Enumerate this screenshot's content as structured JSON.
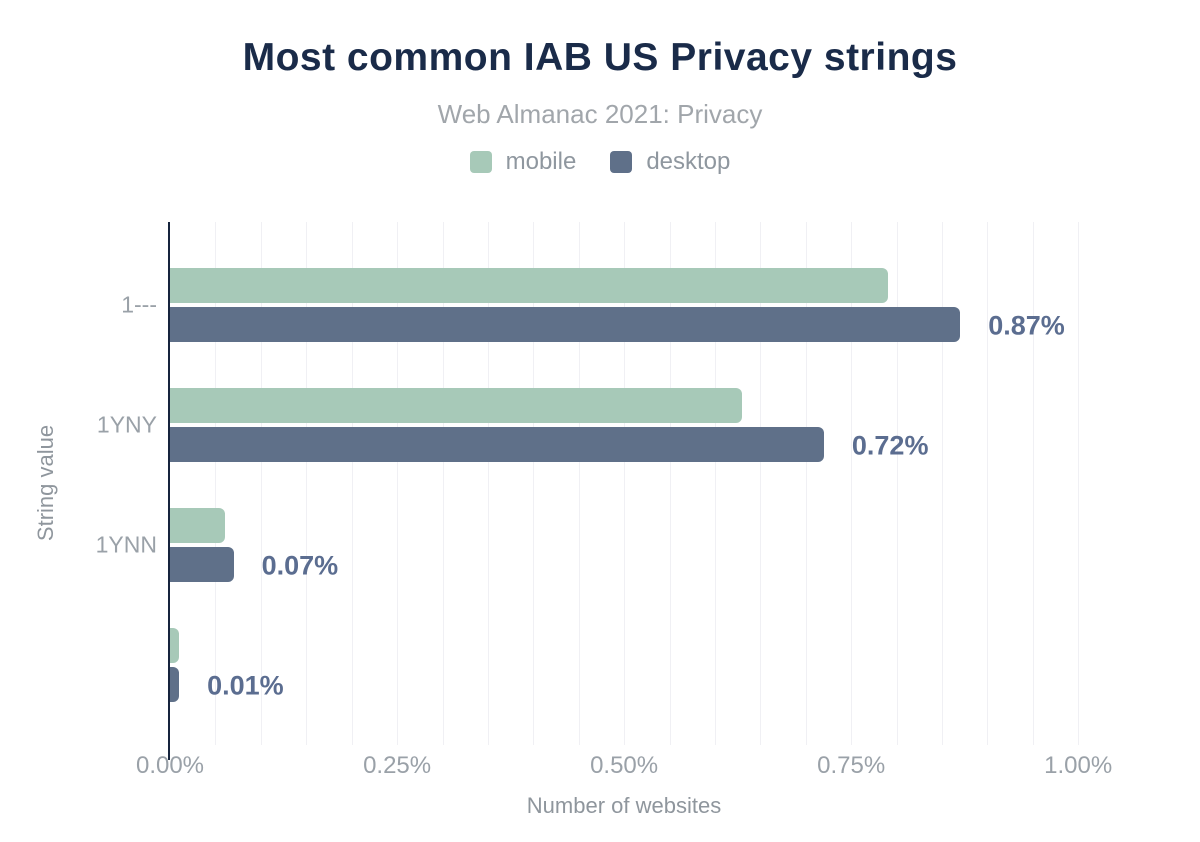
{
  "header": {
    "title": "Most common IAB US Privacy strings",
    "subtitle": "Web Almanac 2021: Privacy"
  },
  "legend": [
    {
      "label": "mobile",
      "color": "#a7c9b8"
    },
    {
      "label": "desktop",
      "color": "#5f7089"
    }
  ],
  "colors": {
    "title": "#1a2b49",
    "subtitle": "#a1a6ab",
    "mobile": "#a7c9b8",
    "desktop": "#5f7089",
    "value_label": "#5b6d90",
    "axis_line": "#16243d",
    "gridline": "#f0f0f4",
    "tick_text": "#9aa1a8"
  },
  "chart_data": {
    "type": "bar",
    "orientation": "horizontal",
    "title": "Most common IAB US Privacy strings",
    "subtitle": "Web Almanac 2021: Privacy",
    "categories": [
      "1---",
      "1YNY",
      "1YNN",
      ""
    ],
    "series": [
      {
        "name": "mobile",
        "color": "#a7c9b8",
        "values": [
          0.79,
          0.63,
          0.06,
          0.01
        ]
      },
      {
        "name": "desktop",
        "color": "#5f7089",
        "values": [
          0.87,
          0.72,
          0.07,
          0.01
        ]
      }
    ],
    "value_labels": [
      "0.87%",
      "0.72%",
      "0.07%",
      "0.01%"
    ],
    "xlabel": "Number of websites",
    "ylabel": "String value",
    "x_ticks": [
      {
        "value": 0.0,
        "label": "0.00%"
      },
      {
        "value": 0.25,
        "label": "0.25%"
      },
      {
        "value": 0.5,
        "label": "0.50%"
      },
      {
        "value": 0.75,
        "label": "0.75%"
      },
      {
        "value": 1.0,
        "label": "1.00%"
      }
    ],
    "xlim": [
      0,
      1.068
    ],
    "grid_step": 0.05,
    "grid": true,
    "legend_position": "top"
  }
}
